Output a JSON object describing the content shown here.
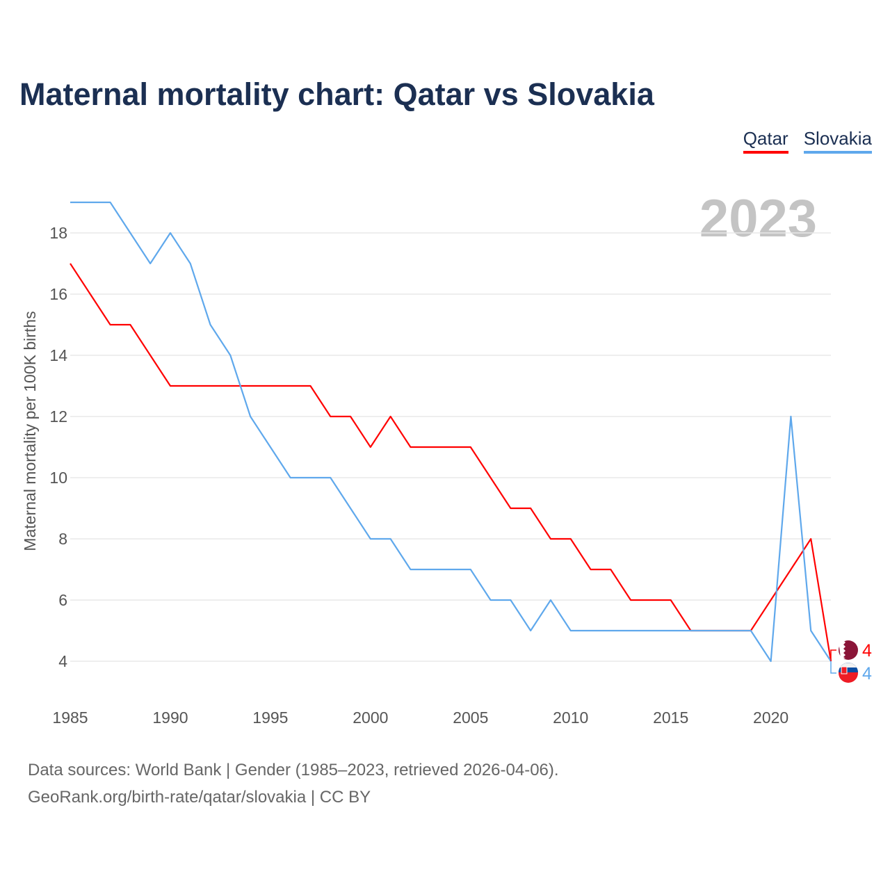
{
  "chart_data": {
    "type": "line",
    "title": "Maternal mortality chart: Qatar vs Slovakia",
    "ylabel": "Maternal mortality per 100K births",
    "xlabel": "",
    "year_label": "2023",
    "x": [
      1985,
      1986,
      1987,
      1988,
      1989,
      1990,
      1991,
      1992,
      1993,
      1994,
      1995,
      1996,
      1997,
      1998,
      1999,
      2000,
      2001,
      2002,
      2003,
      2004,
      2005,
      2006,
      2007,
      2008,
      2009,
      2010,
      2011,
      2012,
      2013,
      2014,
      2015,
      2016,
      2017,
      2018,
      2019,
      2020,
      2021,
      2022,
      2023
    ],
    "xlim": [
      1985,
      2023
    ],
    "ylim": [
      3.2,
      19.3
    ],
    "xticks": [
      1985,
      1990,
      1995,
      2000,
      2005,
      2010,
      2015,
      2020
    ],
    "yticks": [
      4,
      6,
      8,
      10,
      12,
      14,
      16,
      18
    ],
    "grid": true,
    "legend_position": "top-right",
    "series": [
      {
        "name": "Qatar",
        "color": "#ff0000",
        "end_label": "4",
        "values": [
          17,
          16,
          15,
          15,
          14,
          13,
          13,
          13,
          13,
          13,
          13,
          13,
          13,
          12,
          12,
          11,
          12,
          11,
          11,
          11,
          11,
          10,
          9,
          9,
          8,
          8,
          7,
          7,
          6,
          6,
          6,
          5,
          5,
          5,
          5,
          6,
          7,
          8,
          4
        ]
      },
      {
        "name": "Slovakia",
        "color": "#5fa8ec",
        "end_label": "4",
        "values": [
          19,
          19,
          19,
          18,
          17,
          18,
          17,
          15,
          14,
          12,
          11,
          10,
          10,
          10,
          9,
          8,
          8,
          7,
          7,
          7,
          7,
          6,
          6,
          5,
          6,
          5,
          5,
          5,
          5,
          5,
          5,
          5,
          5,
          5,
          5,
          4,
          12,
          5,
          4
        ]
      }
    ]
  },
  "footer": {
    "line1": "Data sources: World Bank | Gender (1985–2023, retrieved 2026-04-06).",
    "line2": "GeoRank.org/birth-rate/qatar/slovakia | CC BY"
  }
}
